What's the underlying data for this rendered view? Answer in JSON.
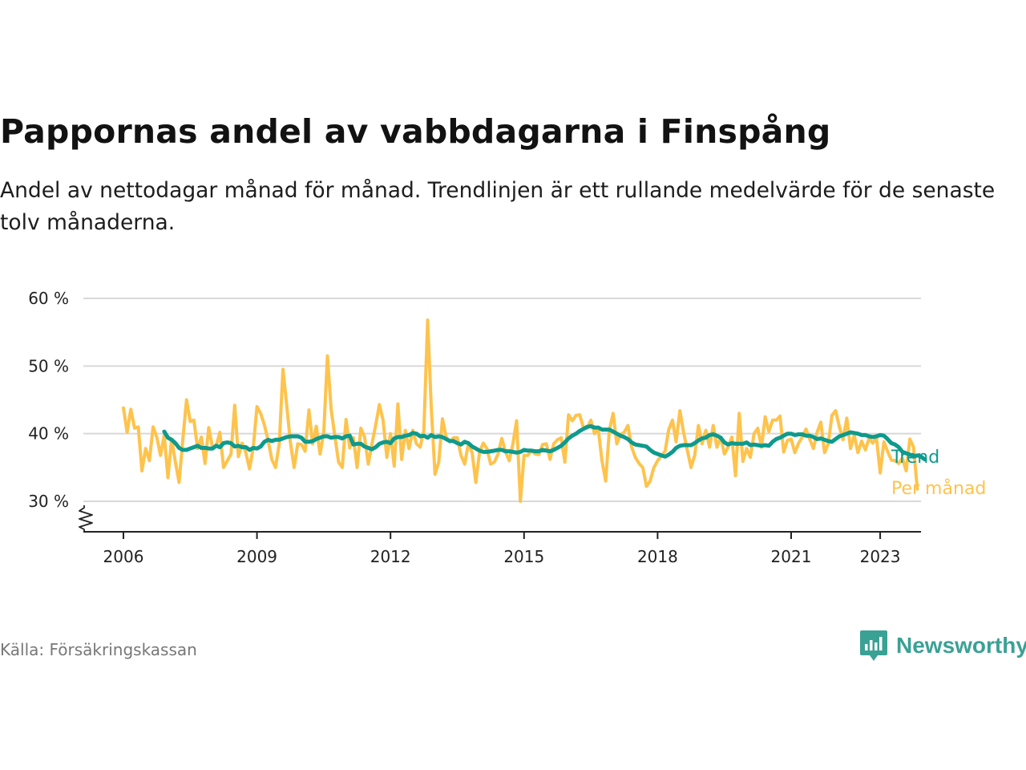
{
  "title": "Pappornas andel av vabbdagarna i Finspång",
  "subtitle": "Andel av nettodagar månad för månad. Trendlinjen är ett rullande medelvärde för de senaste tolv månaderna.",
  "source": "Källa: Försäkringskassan",
  "brand": {
    "name": "Newsworthy",
    "icon": "newsworthy-logo-icon"
  },
  "colors": {
    "monthly": "#fec34c",
    "trend": "#0e9a8c",
    "grid": "#d9d9d9",
    "axis": "#222222"
  },
  "chart_data": {
    "type": "line",
    "title": "Pappornas andel av vabbdagarna i Finspång",
    "ylabel": "",
    "xlabel": "",
    "ylim": [
      25.5,
      60
    ],
    "y_ticks": [
      30,
      40,
      50,
      60
    ],
    "y_tick_labels": [
      "30 %",
      "40 %",
      "50 %",
      "60 %"
    ],
    "y_axis_broken": true,
    "x_ticks": [
      2006,
      2009,
      2012,
      2015,
      2018,
      2021,
      2023
    ],
    "x_tick_labels": [
      "2006",
      "2009",
      "2012",
      "2015",
      "2018",
      "2021",
      "2023"
    ],
    "x_range": [
      2005.1,
      2023.917
    ],
    "grid": true,
    "legend": "inline-right",
    "series": [
      {
        "name": "Per månad",
        "color": "#fec34c",
        "x_start": "2006-01",
        "x_step": "1 month",
        "values": [
          43.8,
          40.2,
          43.6,
          40.8,
          41.0,
          34.5,
          37.8,
          36.0,
          41.0,
          39.5,
          36.8,
          39.8,
          33.5,
          39.2,
          35.8,
          32.8,
          39.0,
          45.0,
          41.8,
          42.0,
          37.8,
          39.5,
          35.6,
          40.9,
          38.0,
          38.2,
          40.2,
          35.0,
          36.0,
          37.0,
          44.2,
          36.6,
          38.6,
          37.2,
          34.8,
          38.0,
          44.0,
          43.0,
          41.3,
          39.0,
          36.2,
          35.0,
          38.5,
          49.5,
          44.3,
          38.8,
          35.0,
          38.5,
          38.4,
          37.4,
          43.5,
          38.5,
          41.1,
          37.0,
          40.2,
          51.5,
          43.6,
          39.6,
          35.8,
          35.0,
          42.1,
          37.9,
          39.4,
          35.0,
          40.8,
          39.5,
          35.5,
          38.5,
          41.3,
          44.3,
          42.0,
          36.5,
          40.0,
          35.2,
          44.4,
          36.2,
          40.5,
          37.8,
          40.5,
          38.5,
          38.0,
          40.5,
          56.8,
          43.7,
          34.0,
          35.8,
          42.2,
          39.5,
          38.8,
          39.4,
          39.4,
          36.8,
          35.5,
          38.6,
          37.2,
          32.8,
          37.3,
          38.6,
          37.8,
          35.5,
          35.8,
          37.0,
          39.3,
          37.3,
          36.0,
          38.5,
          41.9,
          30.0,
          36.8,
          36.8,
          37.5,
          37.0,
          36.9,
          38.4,
          38.5,
          36.2,
          38.5,
          39.1,
          39.4,
          35.8,
          42.8,
          41.9,
          42.7,
          42.8,
          40.9,
          40.8,
          42.0,
          40.0,
          40.6,
          36.0,
          33.0,
          40.5,
          43.0,
          38.5,
          39.9,
          40.2,
          41.2,
          38.0,
          36.5,
          35.6,
          35.0,
          32.2,
          33.0,
          35.0,
          36.0,
          36.7,
          37.4,
          40.6,
          42.0,
          38.8,
          43.4,
          40.2,
          37.6,
          35.0,
          36.8,
          41.2,
          38.5,
          40.5,
          38.0,
          41.2,
          38.0,
          39.5,
          37.0,
          38.0,
          39.5,
          33.8,
          43.0,
          35.9,
          37.8,
          36.5,
          40.0,
          40.8,
          38.0,
          42.5,
          40.3,
          42.0,
          42.0,
          42.6,
          37.3,
          39.0,
          39.2,
          37.2,
          38.6,
          39.5,
          40.7,
          39.2,
          37.8,
          40.2,
          41.7,
          37.2,
          38.5,
          42.7,
          43.4,
          41.0,
          39.1,
          42.3,
          37.8,
          39.8,
          37.2,
          38.9,
          37.6,
          39.3,
          38.6,
          39.4,
          34.2,
          38.8,
          37.4,
          36.1,
          36.0,
          35.6,
          36.4,
          34.5,
          39.2,
          38.0,
          31.8
        ]
      },
      {
        "name": "Trend",
        "color": "#0e9a8c",
        "x_start": "2006-12",
        "x_step": "1 month",
        "values": [
          40.3,
          39.4,
          39.1,
          38.6,
          37.9,
          37.6,
          37.6,
          37.8,
          38.0,
          38.2,
          37.9,
          37.9,
          37.8,
          37.8,
          38.2,
          38.0,
          38.6,
          38.7,
          38.6,
          38.1,
          38.2,
          38.0,
          38.0,
          37.6,
          37.9,
          37.8,
          38.1,
          38.8,
          39.1,
          38.9,
          39.1,
          39.1,
          39.3,
          39.5,
          39.6,
          39.6,
          39.6,
          39.4,
          38.8,
          38.8,
          38.9,
          39.2,
          39.4,
          39.6,
          39.6,
          39.4,
          39.5,
          39.5,
          39.3,
          39.6,
          39.7,
          38.4,
          38.5,
          38.5,
          38.1,
          37.9,
          37.7,
          38.0,
          38.5,
          38.7,
          38.8,
          38.6,
          39.3,
          39.5,
          39.5,
          39.7,
          39.8,
          40.1,
          40.0,
          39.6,
          39.7,
          39.4,
          39.8,
          39.5,
          39.6,
          39.5,
          39.2,
          38.9,
          38.9,
          38.6,
          38.4,
          38.8,
          38.6,
          38.1,
          37.8,
          37.5,
          37.3,
          37.3,
          37.4,
          37.5,
          37.6,
          37.6,
          37.4,
          37.4,
          37.3,
          37.2,
          37.3,
          37.6,
          37.5,
          37.5,
          37.4,
          37.4,
          37.6,
          37.5,
          37.4,
          37.6,
          37.9,
          38.2,
          38.7,
          39.3,
          39.7,
          40.0,
          40.4,
          40.7,
          41.0,
          41.1,
          40.9,
          40.9,
          40.6,
          40.6,
          40.6,
          40.3,
          40.0,
          39.7,
          39.5,
          39.2,
          38.7,
          38.4,
          38.3,
          38.2,
          38.1,
          37.6,
          37.2,
          37.0,
          36.8,
          36.6,
          36.9,
          37.3,
          37.9,
          38.2,
          38.3,
          38.3,
          38.3,
          38.6,
          39.0,
          39.3,
          39.4,
          39.8,
          39.9,
          39.7,
          39.4,
          38.7,
          38.4,
          38.6,
          38.5,
          38.5,
          38.5,
          38.7,
          38.3,
          38.4,
          38.3,
          38.2,
          38.3,
          38.2,
          38.8,
          39.2,
          39.4,
          39.7,
          40.0,
          40.0,
          39.8,
          39.9,
          39.9,
          39.7,
          39.7,
          39.5,
          39.2,
          39.3,
          39.1,
          38.9,
          38.8,
          39.2,
          39.6,
          39.8,
          40.0,
          40.2,
          40.1,
          40.0,
          39.8,
          39.8,
          39.6,
          39.5,
          39.6,
          39.8,
          39.7,
          39.2,
          38.6,
          38.4,
          38.0,
          37.3,
          37.1,
          36.9,
          36.6,
          36.8,
          36.6,
          36.2
        ]
      }
    ]
  }
}
